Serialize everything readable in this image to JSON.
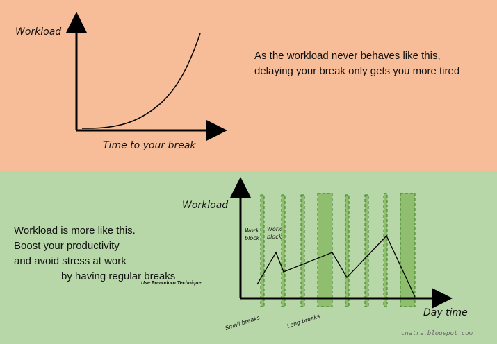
{
  "top": {
    "y_axis_label": "Workload",
    "x_axis_label": "Time to your break",
    "caption_line1": "As the workload never behaves like this,",
    "caption_line2": "delaying your break only gets you more tired"
  },
  "bottom": {
    "y_axis_label": "Workload",
    "x_axis_label": "Day time",
    "work_block_line1": "Work",
    "work_block_line2": "block",
    "small_breaks_label": "Small breaks",
    "long_breaks_label": "Long breaks",
    "caption_line1": "Workload is more like this.",
    "caption_line2": "Boost your productivity",
    "caption_line3": "and avoid stress at work",
    "caption_line4": "by having regular breaks",
    "caption_note": "Use Pomodoro Technique"
  },
  "watermark": "cnatra.blogspot.com",
  "colors": {
    "top_background": "#f7bd98",
    "bottom_background": "#b8d7a8",
    "break_fill": "#8fbf6e",
    "break_border": "#3d7a2a"
  }
}
